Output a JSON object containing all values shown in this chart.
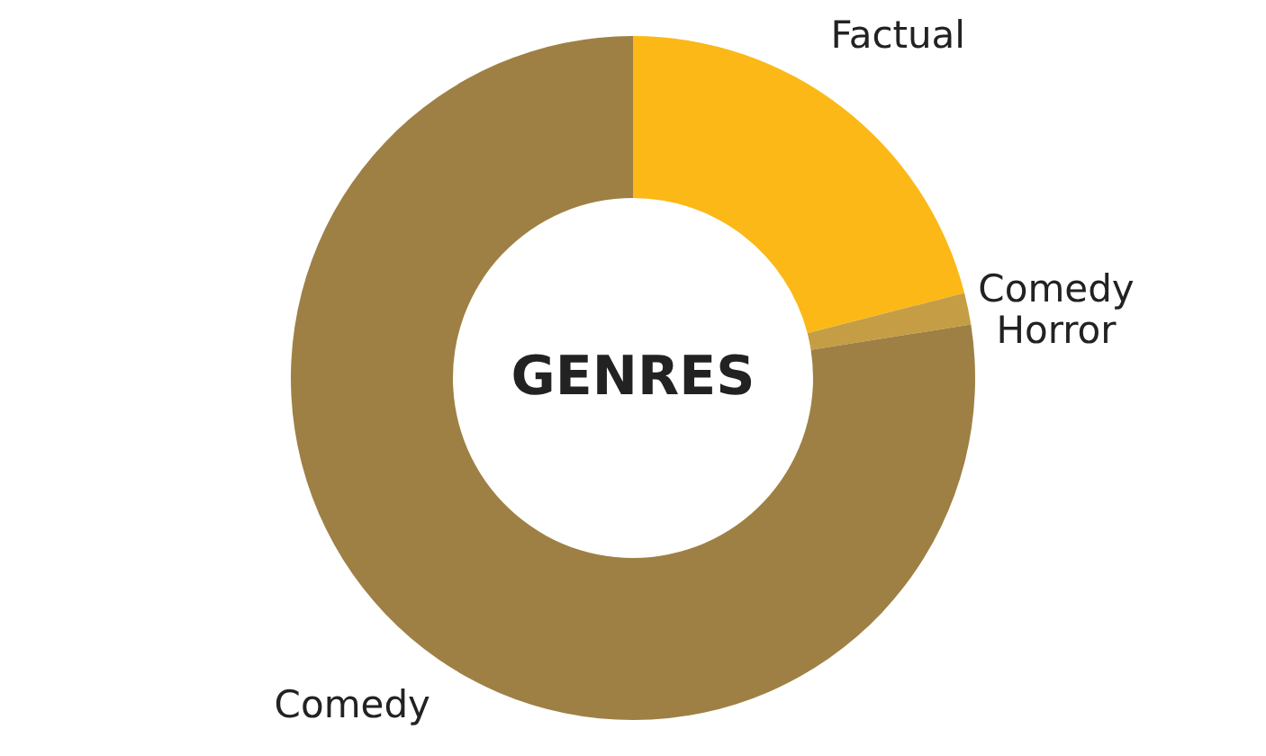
{
  "chart_data": {
    "type": "donut",
    "title": "GENRES",
    "categories": [
      "Factual",
      "Comedy Horror",
      "Comedy"
    ],
    "values": [
      21,
      1.5,
      77.5
    ],
    "colors": [
      "#fbb817",
      "#c59d45",
      "#9e8044"
    ]
  }
}
